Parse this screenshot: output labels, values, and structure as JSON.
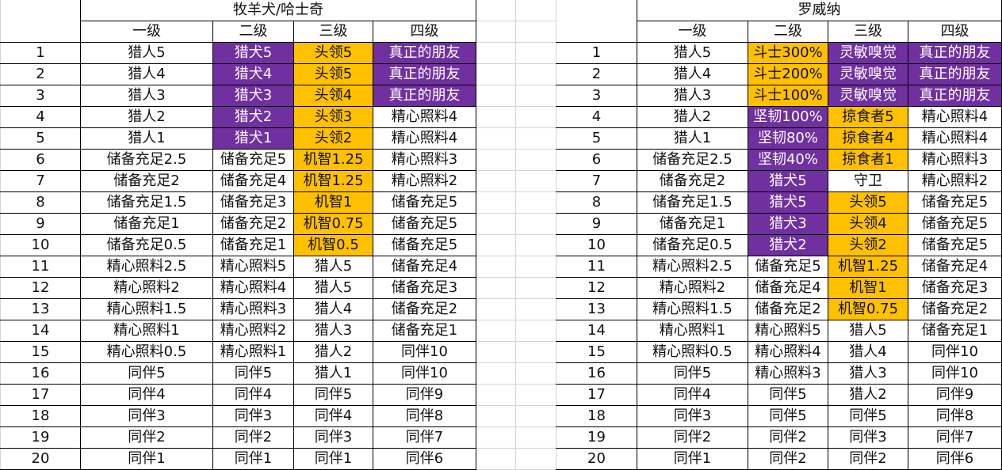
{
  "colors": {
    "purple": "#7030A0",
    "gold": "#FFC000"
  },
  "tables": [
    {
      "title": "牧羊犬/哈士奇",
      "headers": [
        "一级",
        "二级",
        "三级",
        "四级"
      ],
      "rows": [
        {
          "n": "1",
          "cells": [
            [
              "猎人5",
              ""
            ],
            [
              "猎犬5",
              "p"
            ],
            [
              "头领5",
              "g"
            ],
            [
              "真正的朋友",
              "p"
            ]
          ]
        },
        {
          "n": "2",
          "cells": [
            [
              "猎人4",
              ""
            ],
            [
              "猎犬4",
              "p"
            ],
            [
              "头领5",
              "g"
            ],
            [
              "真正的朋友",
              "p"
            ]
          ]
        },
        {
          "n": "3",
          "cells": [
            [
              "猎人3",
              ""
            ],
            [
              "猎犬3",
              "p"
            ],
            [
              "头领4",
              "g"
            ],
            [
              "真正的朋友",
              "p"
            ]
          ]
        },
        {
          "n": "4",
          "cells": [
            [
              "猎人2",
              ""
            ],
            [
              "猎犬2",
              "p"
            ],
            [
              "头领3",
              "g"
            ],
            [
              "精心照料4",
              ""
            ]
          ]
        },
        {
          "n": "5",
          "cells": [
            [
              "猎人1",
              ""
            ],
            [
              "猎犬1",
              "p"
            ],
            [
              "头领2",
              "g"
            ],
            [
              "精心照料4",
              ""
            ]
          ]
        },
        {
          "n": "6",
          "cells": [
            [
              "储备充足2.5",
              ""
            ],
            [
              "储备充足5",
              ""
            ],
            [
              "机智1.25",
              "g"
            ],
            [
              "精心照料3",
              ""
            ]
          ]
        },
        {
          "n": "7",
          "cells": [
            [
              "储备充足2",
              ""
            ],
            [
              "储备充足4",
              ""
            ],
            [
              "机智1.25",
              "g"
            ],
            [
              "精心照料2",
              ""
            ]
          ]
        },
        {
          "n": "8",
          "cells": [
            [
              "储备充足1.5",
              ""
            ],
            [
              "储备充足3",
              ""
            ],
            [
              "机智1",
              "g"
            ],
            [
              "储备充足5",
              ""
            ]
          ]
        },
        {
          "n": "9",
          "cells": [
            [
              "储备充足1",
              ""
            ],
            [
              "储备充足2",
              ""
            ],
            [
              "机智0.75",
              "g"
            ],
            [
              "储备充足5",
              ""
            ]
          ]
        },
        {
          "n": "10",
          "cells": [
            [
              "储备充足0.5",
              ""
            ],
            [
              "储备充足1",
              ""
            ],
            [
              "机智0.5",
              "g"
            ],
            [
              "储备充足5",
              ""
            ]
          ]
        },
        {
          "n": "11",
          "cells": [
            [
              "精心照料2.5",
              ""
            ],
            [
              "精心照料5",
              ""
            ],
            [
              "猎人5",
              ""
            ],
            [
              "储备充足4",
              ""
            ]
          ]
        },
        {
          "n": "12",
          "cells": [
            [
              "精心照料2",
              ""
            ],
            [
              "精心照料4",
              ""
            ],
            [
              "猎人5",
              ""
            ],
            [
              "储备充足3",
              ""
            ]
          ]
        },
        {
          "n": "13",
          "cells": [
            [
              "精心照料1.5",
              ""
            ],
            [
              "精心照料3",
              ""
            ],
            [
              "猎人4",
              ""
            ],
            [
              "储备充足2",
              ""
            ]
          ]
        },
        {
          "n": "14",
          "cells": [
            [
              "精心照料1",
              ""
            ],
            [
              "精心照料2",
              ""
            ],
            [
              "猎人3",
              ""
            ],
            [
              "储备充足1",
              ""
            ]
          ]
        },
        {
          "n": "15",
          "cells": [
            [
              "精心照料0.5",
              ""
            ],
            [
              "精心照料1",
              ""
            ],
            [
              "猎人2",
              ""
            ],
            [
              "同伴10",
              ""
            ]
          ]
        },
        {
          "n": "16",
          "cells": [
            [
              "同伴5",
              ""
            ],
            [
              "同伴5",
              ""
            ],
            [
              "猎人1",
              ""
            ],
            [
              "同伴10",
              ""
            ]
          ]
        },
        {
          "n": "17",
          "cells": [
            [
              "同伴4",
              ""
            ],
            [
              "同伴4",
              ""
            ],
            [
              "同伴5",
              ""
            ],
            [
              "同伴9",
              ""
            ]
          ]
        },
        {
          "n": "18",
          "cells": [
            [
              "同伴3",
              ""
            ],
            [
              "同伴3",
              ""
            ],
            [
              "同伴4",
              ""
            ],
            [
              "同伴8",
              ""
            ]
          ]
        },
        {
          "n": "19",
          "cells": [
            [
              "同伴2",
              ""
            ],
            [
              "同伴2",
              ""
            ],
            [
              "同伴3",
              ""
            ],
            [
              "同伴7",
              ""
            ]
          ]
        },
        {
          "n": "20",
          "cells": [
            [
              "同伴1",
              ""
            ],
            [
              "同伴1",
              ""
            ],
            [
              "同伴1",
              ""
            ],
            [
              "同伴6",
              ""
            ]
          ]
        }
      ]
    },
    {
      "title": "罗威纳",
      "headers": [
        "一级",
        "二级",
        "三级",
        "四级"
      ],
      "rows": [
        {
          "n": "1",
          "cells": [
            [
              "猎人5",
              ""
            ],
            [
              "斗士300%",
              "g"
            ],
            [
              "灵敏嗅觉",
              "p"
            ],
            [
              "真正的朋友",
              "p"
            ]
          ]
        },
        {
          "n": "2",
          "cells": [
            [
              "猎人4",
              ""
            ],
            [
              "斗士200%",
              "g"
            ],
            [
              "灵敏嗅觉",
              "p"
            ],
            [
              "真正的朋友",
              "p"
            ]
          ]
        },
        {
          "n": "3",
          "cells": [
            [
              "猎人3",
              ""
            ],
            [
              "斗士100%",
              "g"
            ],
            [
              "灵敏嗅觉",
              "p"
            ],
            [
              "真正的朋友",
              "p"
            ]
          ]
        },
        {
          "n": "4",
          "cells": [
            [
              "猎人2",
              ""
            ],
            [
              "坚韧100%",
              "p"
            ],
            [
              "掠食者5",
              "g"
            ],
            [
              "精心照料4",
              ""
            ]
          ]
        },
        {
          "n": "5",
          "cells": [
            [
              "猎人1",
              ""
            ],
            [
              "坚韧80%",
              "p"
            ],
            [
              "掠食者4",
              "g"
            ],
            [
              "精心照料4",
              ""
            ]
          ]
        },
        {
          "n": "6",
          "cells": [
            [
              "储备充足2.5",
              ""
            ],
            [
              "坚韧40%",
              "p"
            ],
            [
              "掠食者1",
              "g"
            ],
            [
              "精心照料3",
              ""
            ]
          ]
        },
        {
          "n": "7",
          "cells": [
            [
              "储备充足2",
              ""
            ],
            [
              "猎犬5",
              "p"
            ],
            [
              "守卫",
              ""
            ],
            [
              "精心照料2",
              ""
            ]
          ]
        },
        {
          "n": "8",
          "cells": [
            [
              "储备充足1.5",
              ""
            ],
            [
              "猎犬5",
              "p"
            ],
            [
              "头领5",
              "g"
            ],
            [
              "储备充足5",
              ""
            ]
          ]
        },
        {
          "n": "9",
          "cells": [
            [
              "储备充足1",
              ""
            ],
            [
              "猎犬3",
              "p"
            ],
            [
              "头领4",
              "g"
            ],
            [
              "储备充足5",
              ""
            ]
          ]
        },
        {
          "n": "10",
          "cells": [
            [
              "储备充足0.5",
              ""
            ],
            [
              "猎犬2",
              "p"
            ],
            [
              "头领2",
              "g"
            ],
            [
              "储备充足5",
              ""
            ]
          ]
        },
        {
          "n": "11",
          "cells": [
            [
              "精心照料2.5",
              ""
            ],
            [
              "储备充足5",
              ""
            ],
            [
              "机智1.25",
              "g"
            ],
            [
              "储备充足4",
              ""
            ]
          ]
        },
        {
          "n": "12",
          "cells": [
            [
              "精心照料2",
              ""
            ],
            [
              "储备充足4",
              ""
            ],
            [
              "机智1",
              "g"
            ],
            [
              "储备充足3",
              ""
            ]
          ]
        },
        {
          "n": "13",
          "cells": [
            [
              "精心照料1.5",
              ""
            ],
            [
              "储备充足2",
              ""
            ],
            [
              "机智0.75",
              "g"
            ],
            [
              "储备充足2",
              ""
            ]
          ]
        },
        {
          "n": "14",
          "cells": [
            [
              "精心照料1",
              ""
            ],
            [
              "精心照料5",
              ""
            ],
            [
              "猎人5",
              ""
            ],
            [
              "储备充足1",
              ""
            ]
          ]
        },
        {
          "n": "15",
          "cells": [
            [
              "精心照料0.5",
              ""
            ],
            [
              "精心照料4",
              ""
            ],
            [
              "猎人4",
              ""
            ],
            [
              "同伴10",
              ""
            ]
          ]
        },
        {
          "n": "16",
          "cells": [
            [
              "同伴5",
              ""
            ],
            [
              "精心照料3",
              ""
            ],
            [
              "猎人3",
              ""
            ],
            [
              "同伴10",
              ""
            ]
          ]
        },
        {
          "n": "17",
          "cells": [
            [
              "同伴4",
              ""
            ],
            [
              "同伴5",
              ""
            ],
            [
              "猎人2",
              ""
            ],
            [
              "同伴9",
              ""
            ]
          ]
        },
        {
          "n": "18",
          "cells": [
            [
              "同伴3",
              ""
            ],
            [
              "同伴5",
              ""
            ],
            [
              "同伴5",
              ""
            ],
            [
              "同伴8",
              ""
            ]
          ]
        },
        {
          "n": "19",
          "cells": [
            [
              "同伴2",
              ""
            ],
            [
              "同伴2",
              ""
            ],
            [
              "同伴3",
              ""
            ],
            [
              "同伴7",
              ""
            ]
          ]
        },
        {
          "n": "20",
          "cells": [
            [
              "同伴1",
              ""
            ],
            [
              "同伴2",
              ""
            ],
            [
              "同伴2",
              ""
            ],
            [
              "同伴6",
              ""
            ]
          ]
        }
      ]
    }
  ]
}
